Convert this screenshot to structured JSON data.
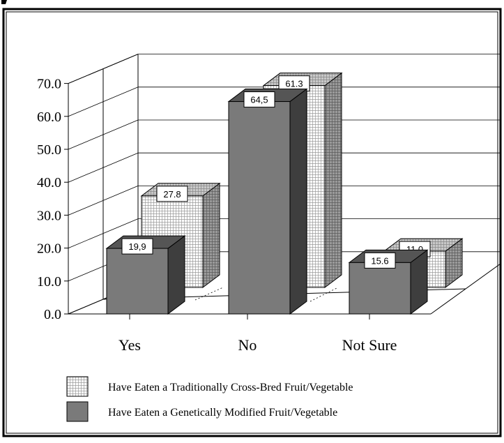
{
  "chart_data": {
    "type": "bar",
    "style": "3d-clustered",
    "categories": [
      "Yes",
      "No",
      "Not Sure"
    ],
    "series": [
      {
        "name": "Have Eaten a Traditionally Cross-Bred Fruit/Vegetable",
        "values": [
          27.8,
          61.3,
          11.0
        ],
        "value_labels": [
          "27.8",
          "61.3",
          "11,0"
        ],
        "pattern": "grid",
        "color": "#ffffff"
      },
      {
        "name": "Have Eaten a Genetically Modified Fruit/Vegetable",
        "values": [
          19.9,
          64.5,
          15.6
        ],
        "value_labels": [
          "19,9",
          "64,5",
          "15.6"
        ],
        "pattern": "solid",
        "color": "#7a7a7a"
      }
    ],
    "yticks": [
      "0.0",
      "10.0",
      "20.0",
      "30.0",
      "40.0",
      "50.0",
      "60.0",
      "70.0"
    ],
    "ylim": [
      0,
      70
    ],
    "grid": true,
    "legend_position": "bottom"
  }
}
